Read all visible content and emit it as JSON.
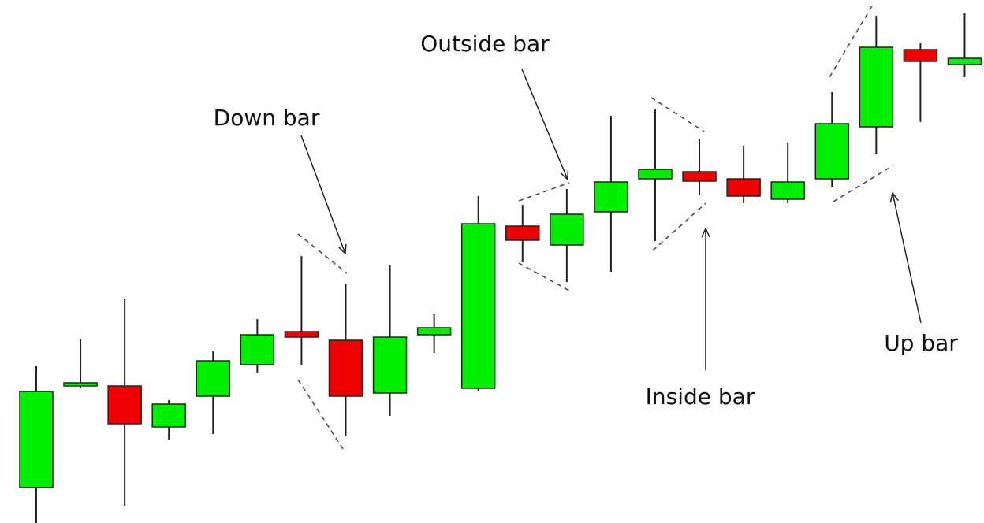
{
  "chart_data": {
    "type": "candlestick",
    "up_color": "#00ee00",
    "down_color": "#ee0000",
    "ylim": [
      0,
      664
    ],
    "open": [
      45,
      174,
      174,
      122,
      161,
      201,
      243,
      232,
      165,
      239,
      171,
      377,
      353,
      395,
      437,
      446,
      437,
      411,
      437,
      503,
      601,
      582
    ],
    "high": [
      199,
      233,
      285,
      156,
      218,
      259,
      339,
      304,
      327,
      265,
      415,
      404,
      424,
      517,
      525,
      487,
      479,
      483,
      547,
      644,
      609,
      647
    ],
    "low": [
      0,
      172,
      22,
      106,
      113,
      191,
      200,
      110,
      136,
      216,
      167,
      331,
      306,
      319,
      358,
      416,
      406,
      406,
      426,
      468,
      509,
      566
    ],
    "close": [
      167,
      178,
      126,
      151,
      206,
      239,
      236,
      161,
      236,
      248,
      380,
      359,
      392,
      433,
      449,
      434,
      415,
      433,
      507,
      604,
      586,
      590
    ],
    "annotations": [
      "Down bar",
      "Outside bar",
      "Inside bar",
      "Up bar"
    ]
  }
}
